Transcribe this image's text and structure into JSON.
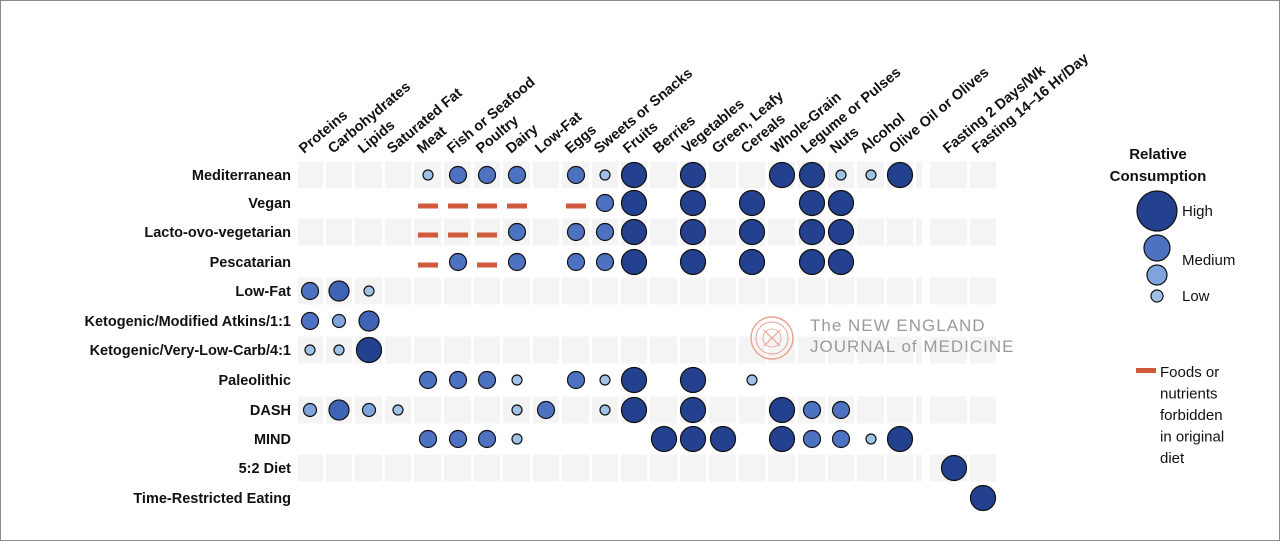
{
  "chart_data": {
    "type": "bubble-matrix",
    "columns": [
      "Proteins",
      "Carbohydrates",
      "Lipids",
      "Saturated Fat",
      "Meat",
      "Fish or Seafood",
      "Poultry",
      "Dairy",
      "Low-Fat",
      "Eggs",
      "Sweets or Snacks",
      "Fruits",
      "Berries",
      "Vegetables",
      "Green, Leafy",
      "Cereals",
      "Whole-Grain",
      "Legume or Pulses",
      "Nuts",
      "Alcohol",
      "Olive Oil or Olives",
      "Fasting 2 Days/Wk",
      "Fasting 14–16 Hr/Day"
    ],
    "rows": [
      {
        "label": "Mediterranean",
        "values": [
          0,
          0,
          0,
          0,
          1,
          2,
          2,
          2,
          0,
          2,
          1,
          3,
          0,
          3,
          0,
          0,
          3,
          3,
          1,
          1,
          3,
          0,
          0
        ]
      },
      {
        "label": "Vegan",
        "values": [
          0,
          0,
          0,
          0,
          -1,
          -1,
          -1,
          -1,
          0,
          -1,
          2,
          3,
          0,
          3,
          0,
          3,
          0,
          3,
          3,
          0,
          0,
          0,
          0
        ]
      },
      {
        "label": "Lacto-ovo-vegetarian",
        "values": [
          0,
          0,
          0,
          0,
          -1,
          -1,
          -1,
          2,
          0,
          2,
          2,
          3,
          0,
          3,
          0,
          3,
          0,
          3,
          3,
          0,
          0,
          0,
          0
        ]
      },
      {
        "label": "Pescatarian",
        "values": [
          0,
          0,
          0,
          0,
          -1,
          2,
          -1,
          2,
          0,
          2,
          2,
          3,
          0,
          3,
          0,
          3,
          0,
          3,
          3,
          0,
          0,
          0,
          0
        ]
      },
      {
        "label": "Low-Fat",
        "values": [
          2,
          2.5,
          1,
          0,
          0,
          0,
          0,
          0,
          0,
          0,
          0,
          0,
          0,
          0,
          0,
          0,
          0,
          0,
          0,
          0,
          0,
          0,
          0
        ]
      },
      {
        "label": "Ketogenic/Modified Atkins/1:1",
        "values": [
          2,
          1.5,
          2.5,
          0,
          0,
          0,
          0,
          0,
          0,
          0,
          0,
          0,
          0,
          0,
          0,
          0,
          0,
          0,
          0,
          0,
          0,
          0,
          0
        ]
      },
      {
        "label": "Ketogenic/Very-Low-Carb/4:1",
        "values": [
          1,
          1,
          3,
          0,
          0,
          0,
          0,
          0,
          0,
          0,
          0,
          0,
          0,
          0,
          0,
          0,
          0,
          0,
          0,
          0,
          0,
          0,
          0
        ]
      },
      {
        "label": "Paleolithic",
        "values": [
          0,
          0,
          0,
          0,
          2,
          2,
          2,
          1,
          0,
          2,
          1,
          3,
          0,
          3,
          0,
          1,
          0,
          0,
          0,
          0,
          0,
          0,
          0
        ]
      },
      {
        "label": "DASH",
        "values": [
          1.5,
          2.5,
          1.5,
          1,
          0,
          0,
          0,
          1,
          2,
          0,
          1,
          3,
          0,
          3,
          0,
          0,
          3,
          2,
          2,
          0,
          0,
          0,
          0
        ]
      },
      {
        "label": "MIND",
        "values": [
          0,
          0,
          0,
          0,
          2,
          2,
          2,
          1,
          0,
          0,
          0,
          0,
          3,
          3,
          3,
          0,
          3,
          2,
          2,
          1,
          3,
          0,
          0
        ]
      },
      {
        "label": "5:2 Diet",
        "values": [
          0,
          0,
          0,
          0,
          0,
          0,
          0,
          0,
          0,
          0,
          0,
          0,
          0,
          0,
          0,
          0,
          0,
          0,
          0,
          0,
          0,
          3,
          0
        ]
      },
      {
        "label": "Time-Restricted Eating",
        "values": [
          0,
          0,
          0,
          0,
          0,
          0,
          0,
          0,
          0,
          0,
          0,
          0,
          0,
          0,
          0,
          0,
          0,
          0,
          0,
          0,
          0,
          0,
          3
        ]
      }
    ],
    "encoding": {
      "forbidden": -1,
      "none": 0,
      "low": 1,
      "medium": 2,
      "high": 3
    },
    "legend": {
      "title_line1": "Relative",
      "title_line2": "Consumption",
      "high": "High",
      "medium": "Medium",
      "low": "Low",
      "forbidden_lines": [
        "Foods or",
        "nutrients",
        "forbidden",
        "in original",
        "diet"
      ]
    },
    "colors": {
      "bubble_high": "#24418f",
      "bubble_mid": "#4d72c2",
      "bubble_low": "#9fc1e6",
      "forbidden": "#d25a3c",
      "stripe": "#f4f4f4"
    }
  },
  "watermark": {
    "line1": "The NEW ENGLAND",
    "line2": "JOURNAL of MEDICINE"
  }
}
